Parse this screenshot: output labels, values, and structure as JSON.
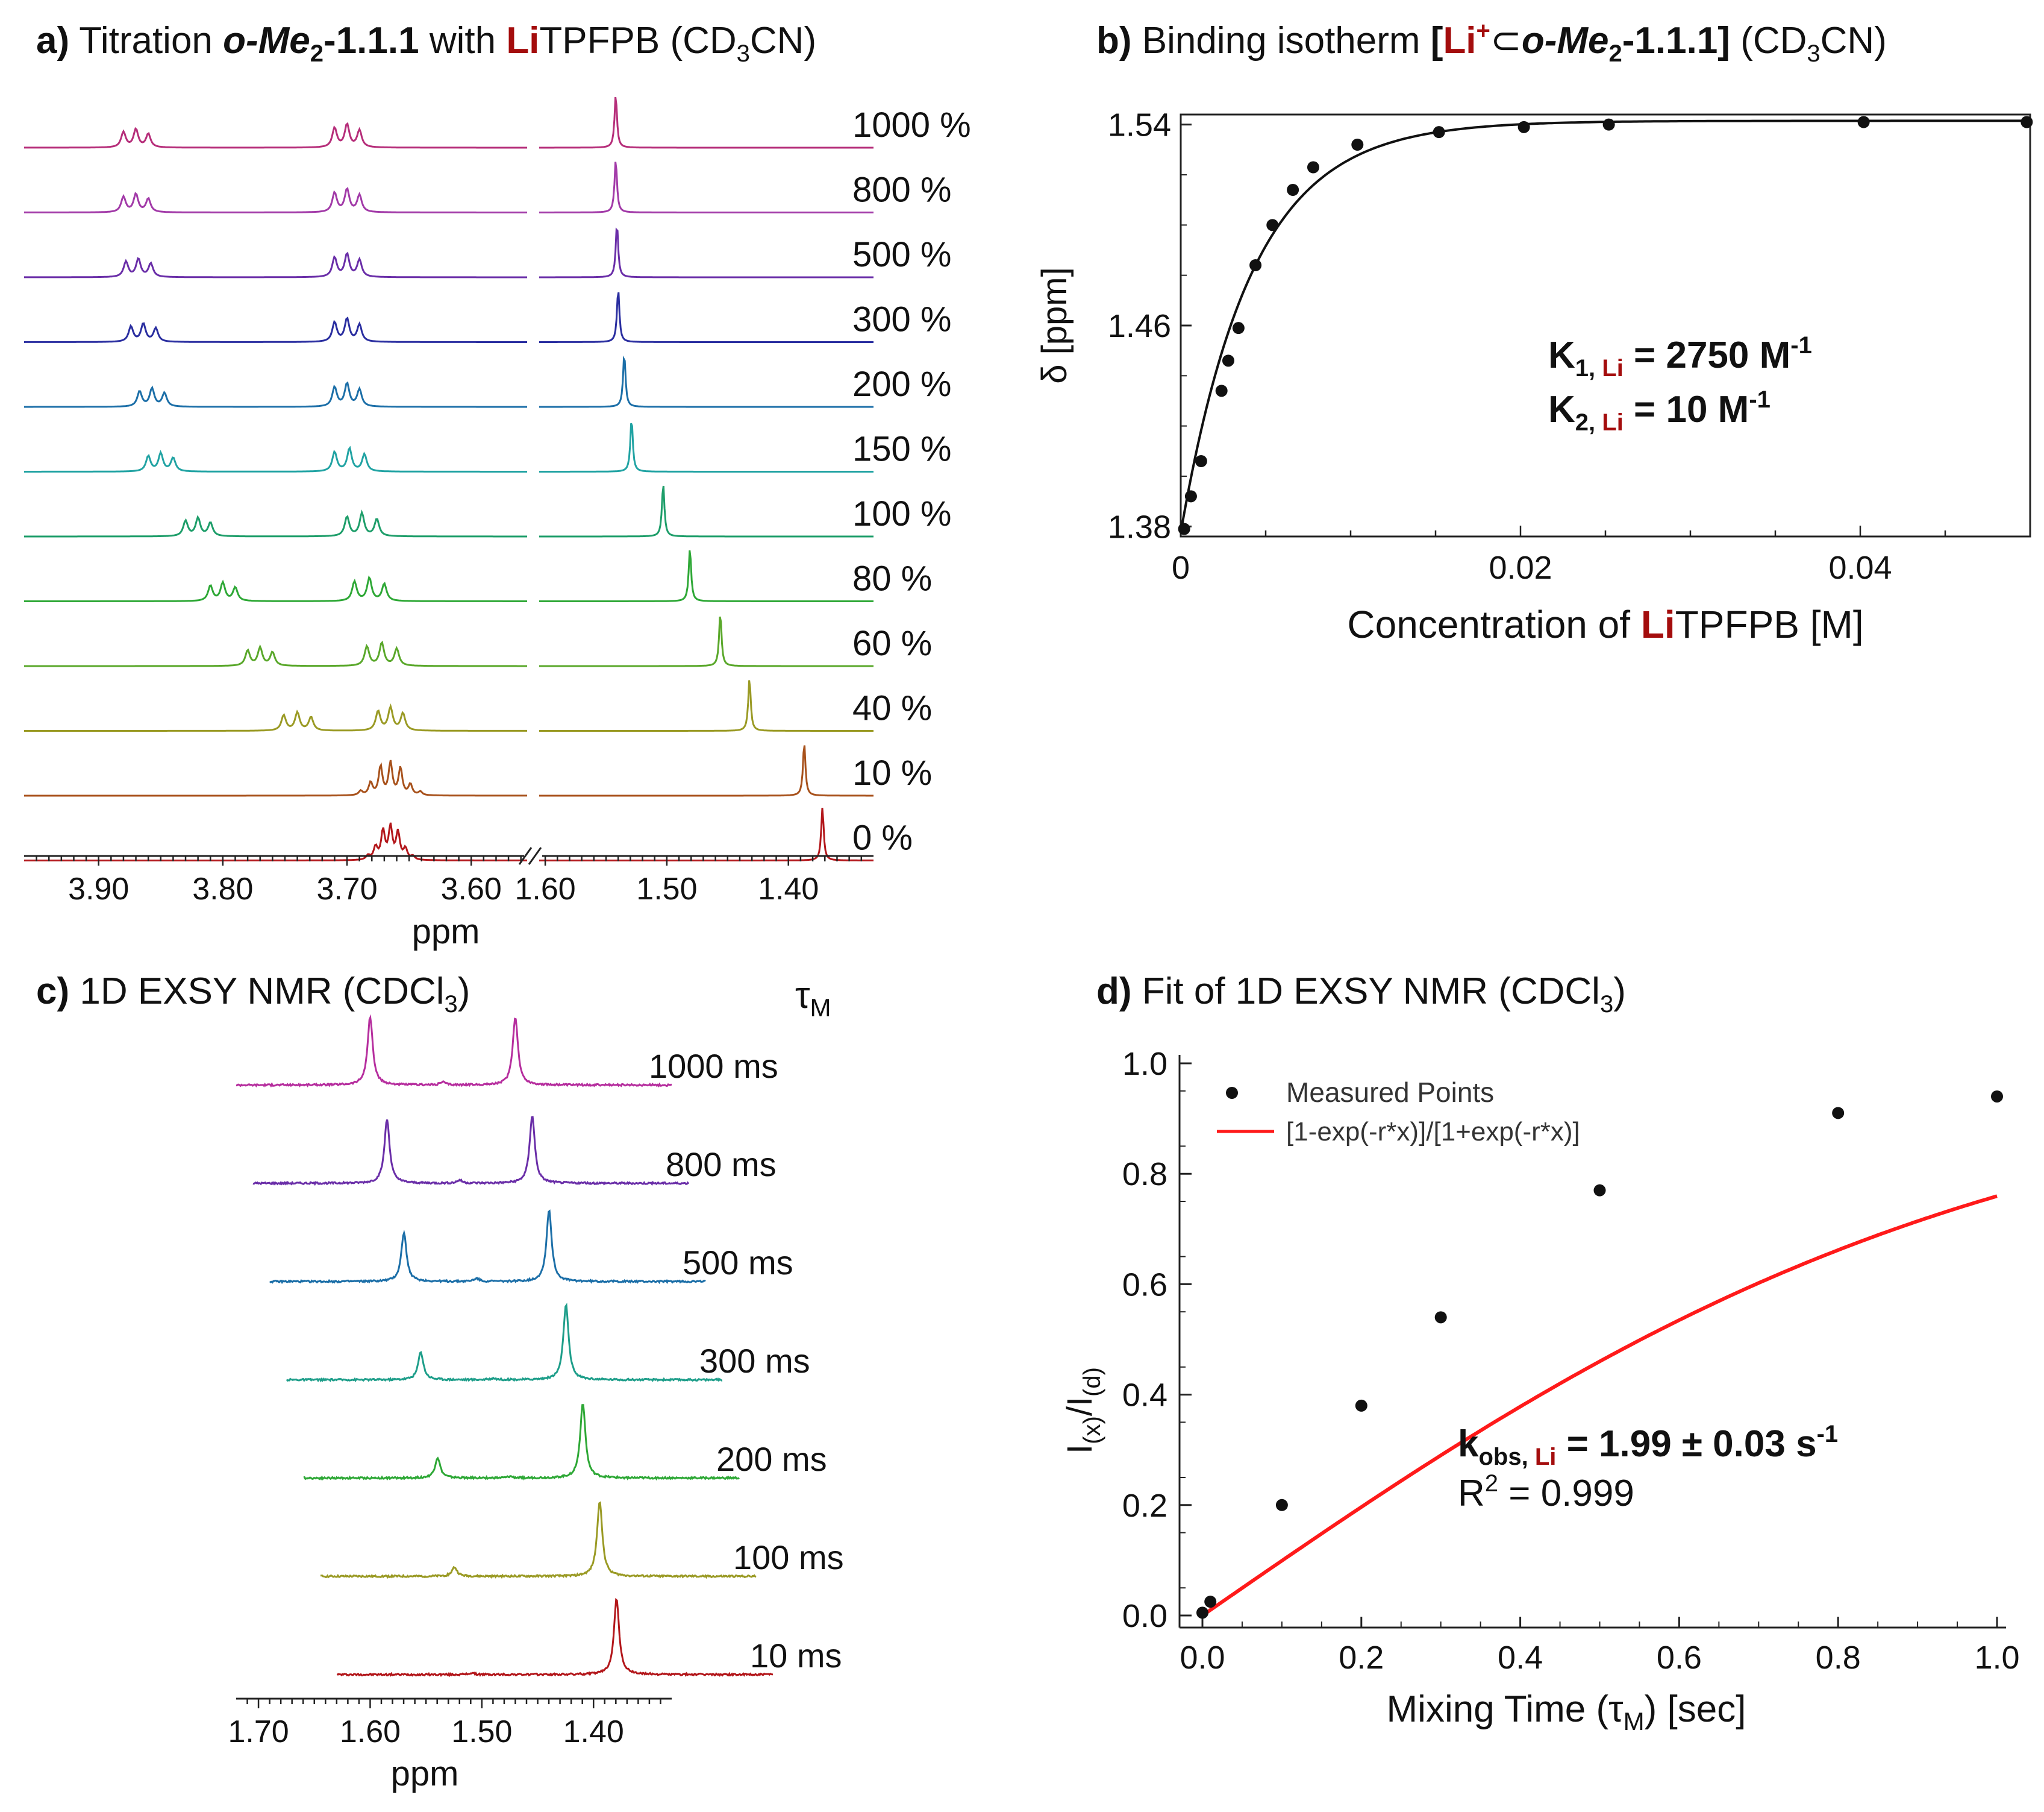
{
  "panel_a": {
    "letter": "a)",
    "title_pre": " Titration ",
    "compound": "o-Me",
    "compound_sub": "2",
    "compound_post": "-1.1.1",
    "title_mid": " with ",
    "li": "Li",
    "title_post": "TPFPB (CD",
    "sub3": "3",
    "title_end": "CN)",
    "xlabel": "ppm"
  },
  "panel_b": {
    "letter": "b)",
    "title_pre": " Binding isotherm ",
    "br_open": "[",
    "li": "Li",
    "plus": "+",
    "subset": "⊂",
    "compound": "o-Me",
    "compound_sub": "2",
    "compound_post": "-1.1.1]",
    "title_post": " (CD",
    "sub3": "3",
    "title_end": "CN)",
    "xlabel_pre": "Concentration of ",
    "xlabel_li": "Li",
    "xlabel_post": "TPFPB [M]",
    "ylabel": "δ  [ppm]",
    "k1_label": "K",
    "k1_sub": "1, ",
    "k1_li": "Li",
    "k1_value": " = 2750 M",
    "k1_exp": "-1",
    "k2_label": "K",
    "k2_sub": "2, ",
    "k2_li": "Li",
    "k2_value": " = 10 M",
    "k2_exp": "-1"
  },
  "panel_c": {
    "letter": "c)",
    "title": " 1D EXSY NMR (CDCl",
    "sub3": "3",
    "title_end": ")",
    "tau": "τ",
    "tau_sub": "M",
    "xlabel": "ppm"
  },
  "panel_d": {
    "letter": "d)",
    "title": " Fit of 1D EXSY NMR (CDCl",
    "sub3": "3",
    "title_end": ")",
    "ylabel_i1": "I",
    "ylabel_x": "(x)",
    "ylabel_slash": "/I",
    "ylabel_d": "(d)",
    "xlabel_pre": "Mixing Time (τ",
    "xlabel_sub": "M",
    "xlabel_post": ") [sec]",
    "legend_points": "Measured Points",
    "legend_fit": "[1-exp(-r*x)]/[1+exp(-r*x)]",
    "k_label": "k",
    "k_sub": "obs, ",
    "k_li": "Li",
    "k_value": " = 1.99 ± 0.03 s",
    "k_exp": "-1",
    "r2_pre": "R",
    "r2_exp": "2",
    "r2_post": " = 0.999"
  },
  "colors": {
    "li_red": "#a40d0d",
    "fit_red": "#ff1a1a"
  },
  "chart_data": [
    {
      "id": "a",
      "type": "line",
      "title": "Titration o-Me2-1.1.1 with LiTPFPB (CD3CN)",
      "xlabel": "ppm",
      "x_ticks_left": [
        "3.90",
        "3.80",
        "3.70",
        "3.60"
      ],
      "x_ticks_right": [
        "1.60",
        "1.50",
        "1.40"
      ],
      "x_range_left": [
        3.96,
        3.555
      ],
      "x_range_right": [
        1.605,
        1.33
      ],
      "series": [
        {
          "name": "0 %",
          "color": "#b3171b",
          "cluster_left": [
            3.665,
            3.63,
            3.695
          ],
          "cluster_right": null,
          "li_peak": 1.372
        },
        {
          "name": "10 %",
          "color": "#a8521c",
          "cluster_left": [
            3.665,
            3.645,
            3.685
          ],
          "cluster_right": null,
          "li_peak": 1.387
        },
        {
          "name": "40 %",
          "color": "#9a9a24",
          "cluster_left": [
            3.74,
            3.73,
            3.752
          ],
          "cluster_right": [
            3.665,
            3.655,
            3.675
          ],
          "li_peak": 1.432
        },
        {
          "name": "60 %",
          "color": "#5aa82b",
          "cluster_left": [
            3.77,
            3.76,
            3.78
          ],
          "cluster_right": [
            3.672,
            3.66,
            3.684
          ],
          "li_peak": 1.456
        },
        {
          "name": "80 %",
          "color": "#2ea836",
          "cluster_left": [
            3.8,
            3.79,
            3.81
          ],
          "cluster_right": [
            3.682,
            3.67,
            3.694
          ],
          "li_peak": 1.481
        },
        {
          "name": "100 %",
          "color": "#1e9e6a",
          "cluster_left": [
            3.82,
            3.81,
            3.83
          ],
          "cluster_right": [
            3.688,
            3.676,
            3.7
          ],
          "li_peak": 1.503
        },
        {
          "name": "150 %",
          "color": "#21a3a3",
          "cluster_left": [
            3.85,
            3.84,
            3.86
          ],
          "cluster_right": [
            3.698,
            3.686,
            3.71
          ],
          "li_peak": 1.529
        },
        {
          "name": "200 %",
          "color": "#1c6fa8",
          "cluster_left": [
            3.857,
            3.847,
            3.867
          ],
          "cluster_right": [
            3.7,
            3.69,
            3.71
          ],
          "li_peak": 1.535
        },
        {
          "name": "300 %",
          "color": "#2a2ea0",
          "cluster_left": [
            3.864,
            3.854,
            3.874
          ],
          "cluster_right": [
            3.7,
            3.69,
            3.71
          ],
          "li_peak": 1.54
        },
        {
          "name": "500 %",
          "color": "#6a2ea8",
          "cluster_left": [
            3.868,
            3.858,
            3.878
          ],
          "cluster_right": [
            3.7,
            3.69,
            3.71
          ],
          "li_peak": 1.541
        },
        {
          "name": "800 %",
          "color": "#a23aa8",
          "cluster_left": [
            3.87,
            3.86,
            3.88
          ],
          "cluster_right": [
            3.7,
            3.69,
            3.71
          ],
          "li_peak": 1.542
        },
        {
          "name": "1000 %",
          "color": "#b62e7a",
          "cluster_left": [
            3.87,
            3.86,
            3.88
          ],
          "cluster_right": [
            3.7,
            3.69,
            3.71
          ],
          "li_peak": 1.542
        }
      ]
    },
    {
      "id": "b",
      "type": "scatter",
      "title": "Binding isotherm [Li+⊂o-Me2-1.1.1] (CD3CN)",
      "xlabel": "Concentration of LiTPFPB [M]",
      "ylabel": "δ [ppm]",
      "xlim": [
        0,
        0.05
      ],
      "ylim": [
        1.38,
        1.54
      ],
      "x_ticks": [
        "0",
        "0.02",
        "0.04"
      ],
      "y_ticks": [
        "1.38",
        "1.46",
        "1.54"
      ],
      "x": [
        0.0002,
        0.0006,
        0.0012,
        0.0024,
        0.0028,
        0.0034,
        0.0044,
        0.0054,
        0.0066,
        0.0078,
        0.0104,
        0.0152,
        0.0202,
        0.0252,
        0.0402,
        0.0498
      ],
      "y": [
        1.379,
        1.392,
        1.406,
        1.434,
        1.446,
        1.459,
        1.484,
        1.5,
        1.514,
        1.523,
        1.532,
        1.537,
        1.539,
        1.54,
        1.541,
        1.541
      ],
      "fit": "binding isotherm (K1 = 2750, K2 = 10)"
    },
    {
      "id": "c",
      "type": "line",
      "title": "1D EXSY NMR (CDCl3)",
      "xlabel": "ppm",
      "x_ticks": [
        "1.70",
        "1.60",
        "1.50",
        "1.40"
      ],
      "x_range": [
        1.72,
        1.33
      ],
      "legend_title": "τM",
      "series": [
        {
          "name": "10 ms",
          "color": "#b3171b",
          "peaks": [
            [
              1.47,
              1.0
            ],
            [
              1.6,
              0.02
            ]
          ]
        },
        {
          "name": "100 ms",
          "color": "#9a9a24",
          "peaks": [
            [
              1.47,
              1.0
            ],
            [
              1.6,
              0.12
            ]
          ]
        },
        {
          "name": "200 ms",
          "color": "#2ea836",
          "peaks": [
            [
              1.47,
              1.0
            ],
            [
              1.6,
              0.27
            ],
            [
              1.535,
              0.02
            ]
          ]
        },
        {
          "name": "300 ms",
          "color": "#1e9e8a",
          "peaks": [
            [
              1.47,
              1.0
            ],
            [
              1.6,
              0.37
            ],
            [
              1.535,
              0.02
            ]
          ]
        },
        {
          "name": "500 ms",
          "color": "#1c6fa8",
          "peaks": [
            [
              1.47,
              0.95
            ],
            [
              1.6,
              0.65
            ],
            [
              1.535,
              0.04
            ]
          ]
        },
        {
          "name": "800 ms",
          "color": "#6a2ea8",
          "peaks": [
            [
              1.47,
              0.9
            ],
            [
              1.6,
              0.85
            ],
            [
              1.535,
              0.04
            ]
          ]
        },
        {
          "name": "1000 ms",
          "color": "#b62e9e",
          "peaks": [
            [
              1.47,
              0.9
            ],
            [
              1.6,
              0.9
            ],
            [
              1.535,
              0.04
            ]
          ]
        }
      ]
    },
    {
      "id": "d",
      "type": "scatter",
      "title": "Fit of 1D EXSY NMR (CDCl3)",
      "xlabel": "Mixing Time (τM) [sec]",
      "ylabel": "I(x)/I(d)",
      "xlim": [
        0,
        1.0
      ],
      "ylim": [
        0,
        1.0
      ],
      "x_ticks": [
        "0.0",
        "0.2",
        "0.4",
        "0.6",
        "0.8",
        "1.0"
      ],
      "y_ticks": [
        "0.0",
        "0.2",
        "0.4",
        "0.6",
        "0.8",
        "1.0"
      ],
      "x": [
        0.0,
        0.01,
        0.1,
        0.2,
        0.3,
        0.5,
        0.8,
        1.0
      ],
      "y": [
        0.005,
        0.025,
        0.2,
        0.38,
        0.54,
        0.77,
        0.91,
        0.94
      ],
      "fit_rate": 1.99,
      "legend": [
        "Measured Points",
        "[1-exp(-r*x)]/[1+exp(-r*x)]"
      ]
    }
  ]
}
